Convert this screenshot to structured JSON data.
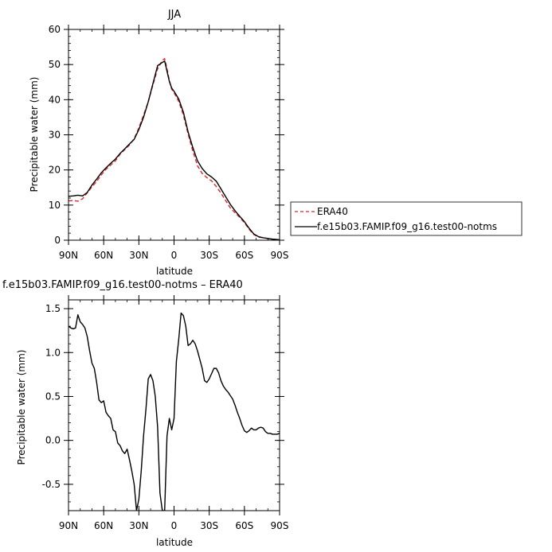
{
  "chart_data": [
    {
      "type": "line",
      "title": "JJA",
      "xlabel": "latitude",
      "ylabel": "Precipitable water (mm)",
      "xlim": [
        90,
        -90
      ],
      "ylim": [
        0,
        60
      ],
      "x_ticks": [
        90,
        60,
        30,
        0,
        -30,
        -60,
        -90
      ],
      "x_tick_labels": [
        "90N",
        "60N",
        "30N",
        "0",
        "30S",
        "60S",
        "90S"
      ],
      "y_ticks": [
        0,
        10,
        20,
        30,
        40,
        50,
        60
      ],
      "y_tick_labels": [
        "0",
        "10",
        "20",
        "30",
        "40",
        "50",
        "60"
      ],
      "grid": false,
      "legend_position": "right, outside plot",
      "series": [
        {
          "name": "ERA40",
          "color": "#e0242a",
          "style": "dashed",
          "x": [
            90,
            86,
            82,
            78,
            74,
            70,
            66,
            62,
            58,
            54,
            50,
            46,
            42,
            38,
            34,
            30,
            26,
            22,
            18,
            14,
            10,
            8,
            6,
            4,
            2,
            0,
            -4,
            -8,
            -12,
            -16,
            -20,
            -24,
            -28,
            -32,
            -36,
            -40,
            -44,
            -48,
            -52,
            -56,
            -60,
            -64,
            -68,
            -72,
            -76,
            -80,
            -84,
            -88,
            -90
          ],
          "y": [
            11.2,
            11.3,
            11.1,
            11.8,
            13.5,
            15.2,
            16.7,
            18.6,
            20.2,
            21.4,
            22.6,
            24.5,
            25.8,
            27.1,
            28.9,
            32,
            35.6,
            39.4,
            44.2,
            48.8,
            51.2,
            51.7,
            48.8,
            45.5,
            43,
            42,
            39.5,
            35.6,
            30.2,
            25.4,
            21.2,
            19,
            17.8,
            16.9,
            15.3,
            13.4,
            11.3,
            9.2,
            7.8,
            6.5,
            5,
            3.1,
            1.6,
            0.9,
            0.7,
            0.5,
            0.3,
            0.2,
            0.1
          ]
        },
        {
          "name": "f.e15b03.FAMIP.f09_g16.test00-notms",
          "color": "#000000",
          "style": "solid",
          "x": [
            90,
            86,
            82,
            78,
            74,
            70,
            66,
            62,
            58,
            54,
            50,
            46,
            42,
            38,
            34,
            30,
            26,
            22,
            18,
            14,
            10,
            8,
            6,
            4,
            2,
            0,
            -4,
            -8,
            -12,
            -16,
            -20,
            -24,
            -28,
            -32,
            -36,
            -40,
            -44,
            -48,
            -52,
            -56,
            -60,
            -64,
            -68,
            -72,
            -76,
            -80,
            -84,
            -88,
            -90
          ],
          "y": [
            12.5,
            12.6,
            12.8,
            12.6,
            13.6,
            15.7,
            17.4,
            19.2,
            20.6,
            21.9,
            23.1,
            24.7,
            26,
            27.4,
            28.7,
            31.5,
            35,
            39.4,
            44.6,
            49.7,
            50.6,
            51,
            48.1,
            45.2,
            43.3,
            42.4,
            40.2,
            36.4,
            30.8,
            26.4,
            22.6,
            20.4,
            18.9,
            18,
            16.8,
            14.6,
            12.4,
            10.2,
            8.4,
            6.8,
            5.3,
            3.4,
            1.8,
            1,
            0.7,
            0.5,
            0.3,
            0.2,
            0.1
          ]
        }
      ]
    },
    {
      "type": "line",
      "title": "f.e15b03.FAMIP.f09_g16.test00-notms – ERA40",
      "xlabel": "latitude",
      "ylabel": "Precipitable water (mm)",
      "xlim": [
        90,
        -90
      ],
      "ylim": [
        -0.8,
        1.6
      ],
      "x_ticks": [
        90,
        60,
        30,
        0,
        -30,
        -60,
        -90
      ],
      "x_tick_labels": [
        "90N",
        "60N",
        "30N",
        "0",
        "30S",
        "60S",
        "90S"
      ],
      "y_ticks": [
        -0.5,
        0,
        0.5,
        1,
        1.5
      ],
      "y_tick_labels": [
        "-0.5",
        "0.0",
        "0.5",
        "1.0",
        "1.5"
      ],
      "grid": false,
      "series": [
        {
          "color": "#000000",
          "style": "solid",
          "x": [
            90,
            88,
            86,
            84,
            82,
            80,
            78,
            76,
            74,
            72,
            70,
            68,
            66,
            64,
            62,
            60,
            58,
            56,
            54,
            52,
            50,
            48,
            46,
            44,
            42,
            40,
            38,
            36,
            34,
            32,
            30,
            28,
            26,
            24,
            22,
            20,
            18,
            16,
            14,
            12,
            10,
            8,
            6,
            4,
            2,
            0,
            -2,
            -4,
            -6,
            -8,
            -10,
            -12,
            -14,
            -16,
            -18,
            -20,
            -22,
            -24,
            -26,
            -28,
            -30,
            -32,
            -34,
            -36,
            -38,
            -40,
            -42,
            -44,
            -46,
            -48,
            -50,
            -52,
            -54,
            -56,
            -58,
            -60,
            -62,
            -64,
            -66,
            -68,
            -70,
            -72,
            -74,
            -76,
            -78,
            -80,
            -82,
            -84,
            -86,
            -88,
            -90
          ],
          "y": [
            1.3,
            1.28,
            1.27,
            1.28,
            1.43,
            1.35,
            1.32,
            1.28,
            1.18,
            1.02,
            0.88,
            0.82,
            0.66,
            0.46,
            0.43,
            0.45,
            0.32,
            0.28,
            0.25,
            0.12,
            0.1,
            -0.03,
            -0.06,
            -0.12,
            -0.15,
            -0.1,
            -0.22,
            -0.35,
            -0.5,
            -0.8,
            -0.67,
            -0.35,
            0.05,
            0.35,
            0.7,
            0.75,
            0.68,
            0.5,
            0.15,
            -0.6,
            -0.8,
            -0.8,
            0.05,
            0.25,
            0.12,
            0.25,
            0.9,
            1.15,
            1.45,
            1.42,
            1.3,
            1.08,
            1.1,
            1.14,
            1.1,
            1.02,
            0.92,
            0.82,
            0.68,
            0.66,
            0.7,
            0.76,
            0.82,
            0.82,
            0.77,
            0.68,
            0.62,
            0.58,
            0.55,
            0.51,
            0.47,
            0.4,
            0.32,
            0.25,
            0.17,
            0.11,
            0.09,
            0.11,
            0.14,
            0.12,
            0.12,
            0.14,
            0.15,
            0.14,
            0.1,
            0.08,
            0.08,
            0.07,
            0.07,
            0.07,
            0.08
          ]
        }
      ]
    }
  ]
}
